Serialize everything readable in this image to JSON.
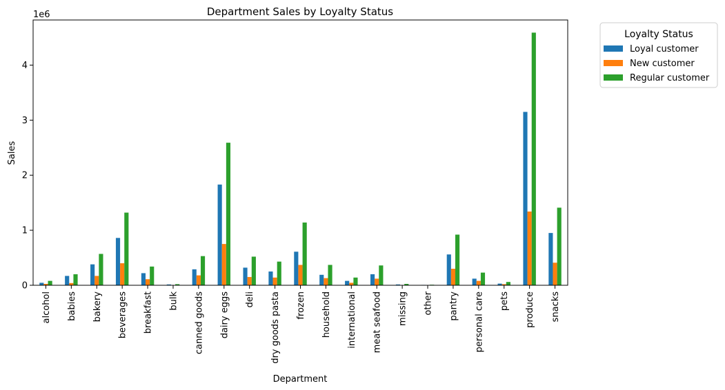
{
  "chart_data": {
    "type": "bar",
    "title": "Department Sales by Loyalty Status",
    "xlabel": "Department",
    "ylabel": "Sales",
    "y_offset_label": "1e6",
    "y_scale": 1000000,
    "ylim": [
      0,
      4820000
    ],
    "yticks": [
      0,
      1,
      2,
      3,
      4
    ],
    "grid": false,
    "legend": {
      "title": "Loyalty Status",
      "placement": "outside-top-right"
    },
    "categories": [
      "alcohol",
      "babies",
      "bakery",
      "beverages",
      "breakfast",
      "bulk",
      "canned goods",
      "dairy eggs",
      "deli",
      "dry goods pasta",
      "frozen",
      "household",
      "international",
      "meat seafood",
      "missing",
      "other",
      "pantry",
      "personal care",
      "pets",
      "produce",
      "snacks"
    ],
    "series": [
      {
        "name": "Loyal customer",
        "color": "#1f77b4",
        "values": [
          45000,
          170000,
          380000,
          860000,
          220000,
          15000,
          290000,
          1830000,
          320000,
          250000,
          610000,
          190000,
          80000,
          200000,
          15000,
          7000,
          560000,
          120000,
          30000,
          3150000,
          950000
        ]
      },
      {
        "name": "New customer",
        "color": "#ff7f0e",
        "values": [
          25000,
          40000,
          170000,
          400000,
          110000,
          5000,
          180000,
          750000,
          150000,
          140000,
          370000,
          130000,
          45000,
          120000,
          6000,
          3000,
          300000,
          80000,
          20000,
          1340000,
          410000
        ]
      },
      {
        "name": "Regular customer",
        "color": "#2ca02c",
        "values": [
          80000,
          200000,
          570000,
          1320000,
          340000,
          20000,
          530000,
          2590000,
          520000,
          430000,
          1140000,
          370000,
          140000,
          360000,
          25000,
          10000,
          920000,
          230000,
          60000,
          4590000,
          1410000
        ]
      }
    ]
  }
}
